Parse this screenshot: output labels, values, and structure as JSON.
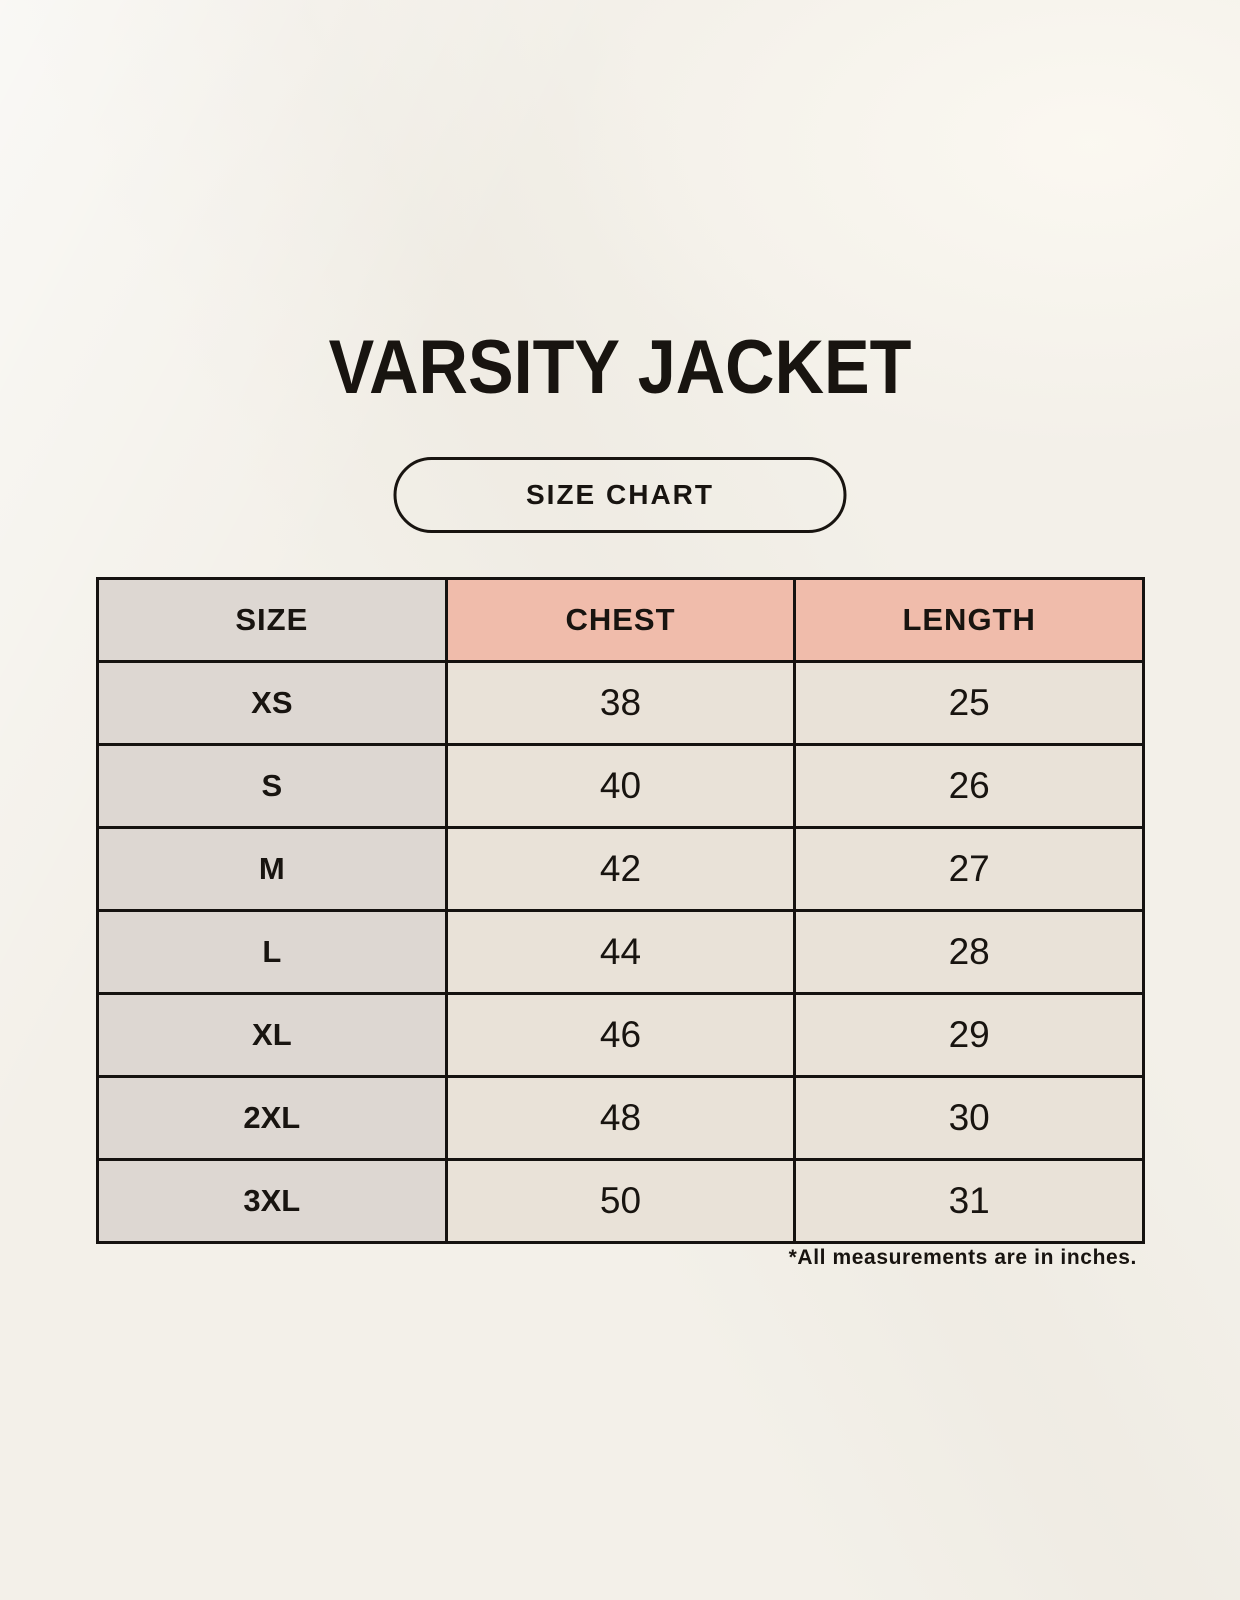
{
  "page": {
    "title": "VARSITY JACKET",
    "size_chart_button": "SIZE CHART",
    "footnote": "*All measurements are in inches."
  },
  "colors": {
    "background": "#f3f0e9",
    "ink": "#181410",
    "border": "#151210",
    "header_accent": "#f0bcab",
    "size_column": "#ddd7d2",
    "value_cell": "#e9e2d8"
  },
  "chart_data": {
    "type": "table",
    "title": "VARSITY JACKET",
    "subtitle": "SIZE CHART",
    "columns": [
      "SIZE",
      "CHEST",
      "LENGTH"
    ],
    "rows": [
      [
        "XS",
        "38",
        "25"
      ],
      [
        "S",
        "40",
        "26"
      ],
      [
        "M",
        "42",
        "27"
      ],
      [
        "L",
        "44",
        "28"
      ],
      [
        "XL",
        "46",
        "29"
      ],
      [
        "2XL",
        "48",
        "30"
      ],
      [
        "3XL",
        "50",
        "31"
      ]
    ],
    "annotations": [
      "*All measurements are in inches."
    ]
  }
}
